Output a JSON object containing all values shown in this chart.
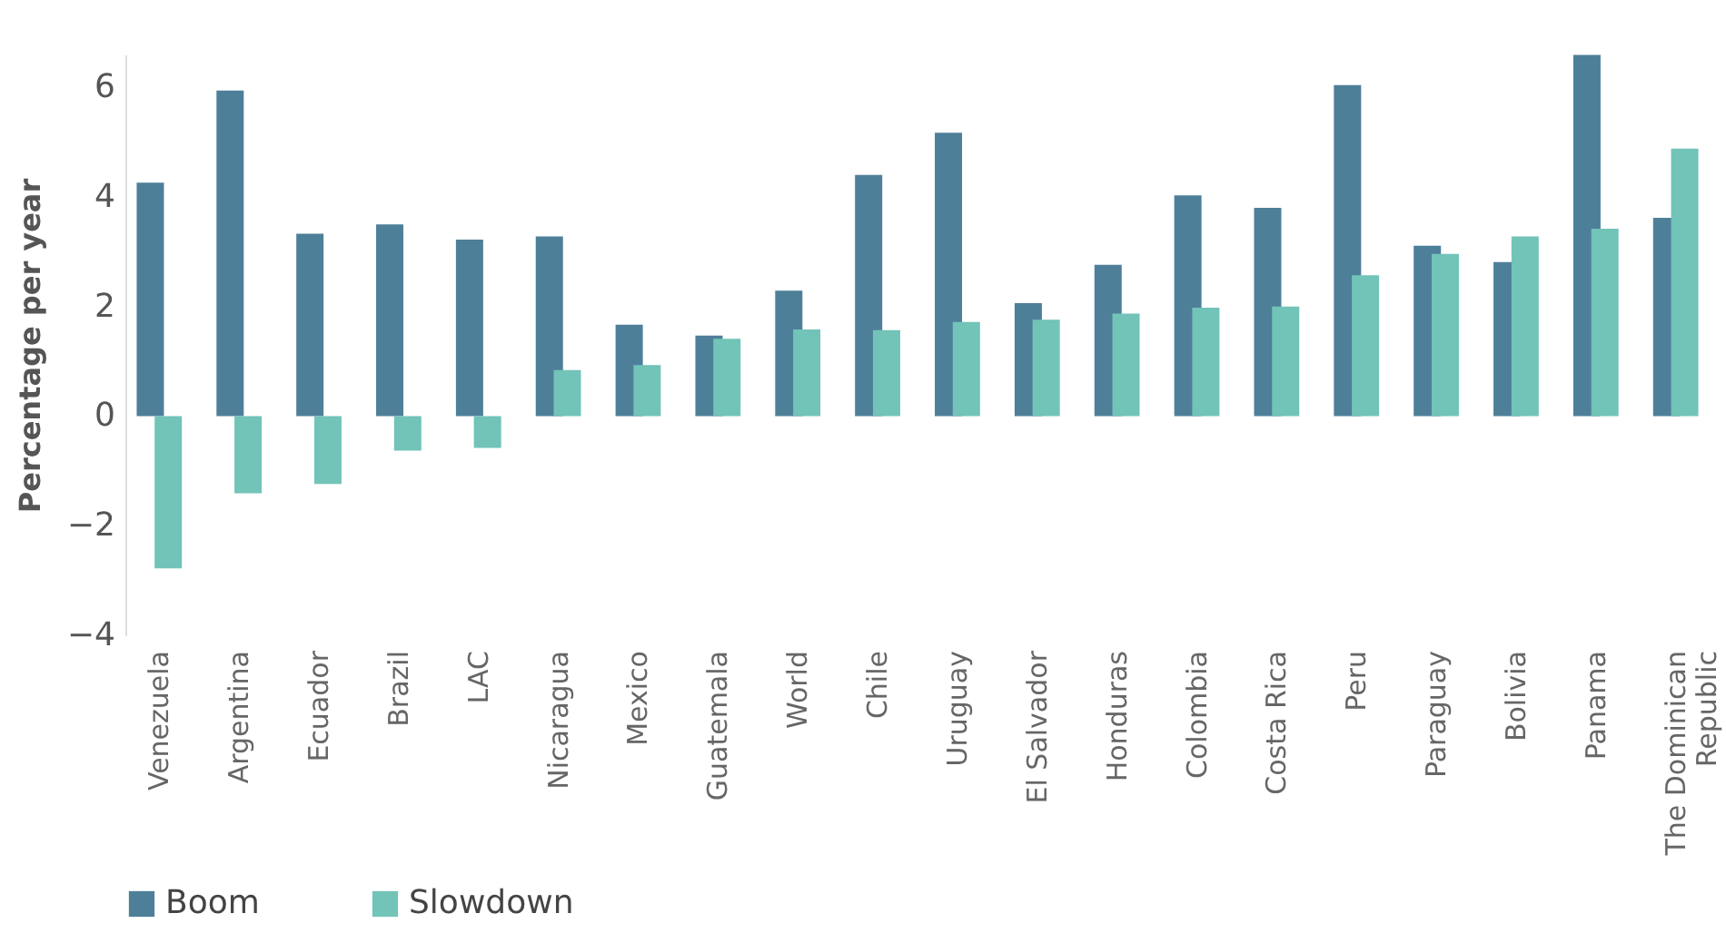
{
  "chart_data": {
    "type": "bar",
    "ylabel": "Percentage per year",
    "categories": [
      "Venezuela",
      "Argentina",
      "Ecuador",
      "Brazil",
      "LAC",
      "Nicaragua",
      "Mexico",
      "Guatemala",
      "World",
      "Chile",
      "Uruguay",
      "El Salvador",
      "Honduras",
      "Colombia",
      "Costa Rica",
      "Peru",
      "Paraguay",
      "Bolivia",
      "Panama",
      "The Dominican Republic"
    ],
    "series": [
      {
        "name": "Boom",
        "color": "#4e7f99",
        "values": [
          4.26,
          5.94,
          3.33,
          3.5,
          3.22,
          3.28,
          1.67,
          1.47,
          2.29,
          4.4,
          5.17,
          2.06,
          2.76,
          4.03,
          3.8,
          6.04,
          3.11,
          2.81,
          6.59,
          3.62
        ]
      },
      {
        "name": "Slowdown",
        "color": "#72c3b8",
        "values": [
          -2.78,
          -1.41,
          -1.24,
          -0.63,
          -0.58,
          0.84,
          0.93,
          1.41,
          1.58,
          1.57,
          1.72,
          1.76,
          1.87,
          1.98,
          2.0,
          2.57,
          2.96,
          3.28,
          3.42,
          4.88
        ]
      }
    ],
    "ylim": [
      -4,
      6.6
    ],
    "yticks": [
      -4,
      -2,
      0,
      2,
      4,
      6
    ],
    "grid": false,
    "legend": "bottom"
  }
}
